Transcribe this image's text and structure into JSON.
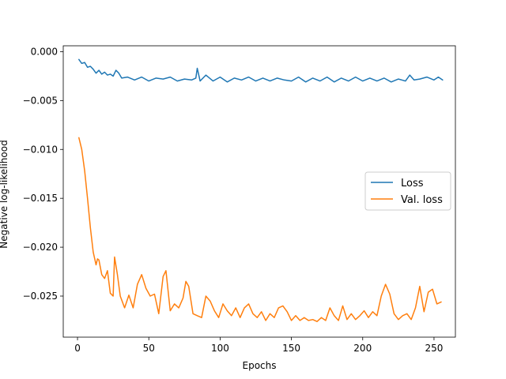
{
  "chart_data": {
    "type": "line",
    "xlabel": "Epochs",
    "ylabel": "Negative log-likelihood",
    "xlim": [
      -10,
      265
    ],
    "ylim": [
      -0.0292,
      0.0006
    ],
    "xticks": [
      0,
      50,
      100,
      150,
      200,
      250
    ],
    "xtick_labels": [
      "0",
      "50",
      "100",
      "150",
      "200",
      "250"
    ],
    "yticks": [
      0.0,
      -0.005,
      -0.01,
      -0.015,
      -0.02,
      -0.025
    ],
    "ytick_labels": [
      "0.000",
      "−0.005",
      "−0.010",
      "−0.015",
      "−0.020",
      "−0.025"
    ],
    "grid": false,
    "legend_position": "center-right",
    "series": [
      {
        "name": "Loss",
        "color": "#1f77b4",
        "x": [
          1,
          3,
          5,
          7,
          9,
          11,
          13,
          15,
          17,
          19,
          21,
          23,
          25,
          27,
          29,
          31,
          35,
          40,
          45,
          50,
          55,
          60,
          65,
          70,
          75,
          80,
          83,
          84,
          86,
          90,
          95,
          100,
          105,
          110,
          115,
          120,
          125,
          130,
          135,
          140,
          145,
          150,
          155,
          160,
          165,
          170,
          175,
          180,
          185,
          190,
          195,
          200,
          205,
          210,
          215,
          220,
          225,
          230,
          233,
          236,
          240,
          245,
          250,
          253,
          256
        ],
        "values": [
          -0.0008,
          -0.0012,
          -0.0011,
          -0.0016,
          -0.0015,
          -0.0018,
          -0.0022,
          -0.0019,
          -0.0023,
          -0.0021,
          -0.0024,
          -0.0023,
          -0.0025,
          -0.0019,
          -0.0022,
          -0.0027,
          -0.0026,
          -0.0029,
          -0.0026,
          -0.003,
          -0.0027,
          -0.0028,
          -0.0026,
          -0.003,
          -0.0028,
          -0.0029,
          -0.0027,
          -0.0017,
          -0.003,
          -0.0024,
          -0.003,
          -0.0026,
          -0.0031,
          -0.0027,
          -0.0029,
          -0.0026,
          -0.003,
          -0.0027,
          -0.003,
          -0.0027,
          -0.0029,
          -0.003,
          -0.0026,
          -0.0031,
          -0.0027,
          -0.003,
          -0.0026,
          -0.0031,
          -0.0027,
          -0.003,
          -0.0026,
          -0.003,
          -0.0027,
          -0.003,
          -0.0027,
          -0.0031,
          -0.0028,
          -0.003,
          -0.0024,
          -0.0029,
          -0.0028,
          -0.0026,
          -0.0029,
          -0.0026,
          -0.0029
        ]
      },
      {
        "name": "Val. loss",
        "color": "#ff7f0e",
        "x": [
          1,
          3,
          5,
          7,
          9,
          11,
          13,
          14,
          15,
          17,
          19,
          21,
          23,
          25,
          26,
          28,
          30,
          33,
          36,
          39,
          42,
          45,
          48,
          51,
          54,
          57,
          60,
          62,
          65,
          68,
          71,
          74,
          76,
          78,
          81,
          84,
          87,
          90,
          93,
          96,
          99,
          102,
          105,
          108,
          111,
          114,
          117,
          120,
          123,
          126,
          129,
          132,
          135,
          138,
          141,
          144,
          147,
          150,
          153,
          156,
          159,
          162,
          165,
          168,
          171,
          174,
          177,
          180,
          183,
          186,
          189,
          192,
          195,
          198,
          201,
          204,
          207,
          210,
          213,
          216,
          219,
          222,
          225,
          228,
          231,
          234,
          237,
          240,
          243,
          246,
          249,
          252,
          255
        ],
        "values": [
          -0.0088,
          -0.01,
          -0.0122,
          -0.015,
          -0.018,
          -0.0205,
          -0.0218,
          -0.0212,
          -0.0213,
          -0.0228,
          -0.0232,
          -0.0224,
          -0.0247,
          -0.025,
          -0.021,
          -0.0228,
          -0.025,
          -0.0262,
          -0.0249,
          -0.0262,
          -0.0238,
          -0.0228,
          -0.0242,
          -0.025,
          -0.0248,
          -0.0268,
          -0.023,
          -0.0224,
          -0.0265,
          -0.0258,
          -0.0262,
          -0.0252,
          -0.0235,
          -0.024,
          -0.0268,
          -0.027,
          -0.0272,
          -0.025,
          -0.0255,
          -0.0265,
          -0.0272,
          -0.0258,
          -0.0265,
          -0.027,
          -0.0262,
          -0.0272,
          -0.0262,
          -0.0258,
          -0.0268,
          -0.0272,
          -0.0266,
          -0.0275,
          -0.0268,
          -0.0272,
          -0.0262,
          -0.026,
          -0.0266,
          -0.0275,
          -0.027,
          -0.0275,
          -0.0272,
          -0.0275,
          -0.0274,
          -0.0276,
          -0.0272,
          -0.0275,
          -0.0262,
          -0.027,
          -0.0275,
          -0.026,
          -0.0274,
          -0.0268,
          -0.0274,
          -0.027,
          -0.0265,
          -0.0272,
          -0.0266,
          -0.027,
          -0.025,
          -0.0238,
          -0.0248,
          -0.0268,
          -0.0274,
          -0.027,
          -0.0268,
          -0.0274,
          -0.0262,
          -0.024,
          -0.0266,
          -0.0246,
          -0.0243,
          -0.0258,
          -0.0256
        ]
      }
    ]
  }
}
